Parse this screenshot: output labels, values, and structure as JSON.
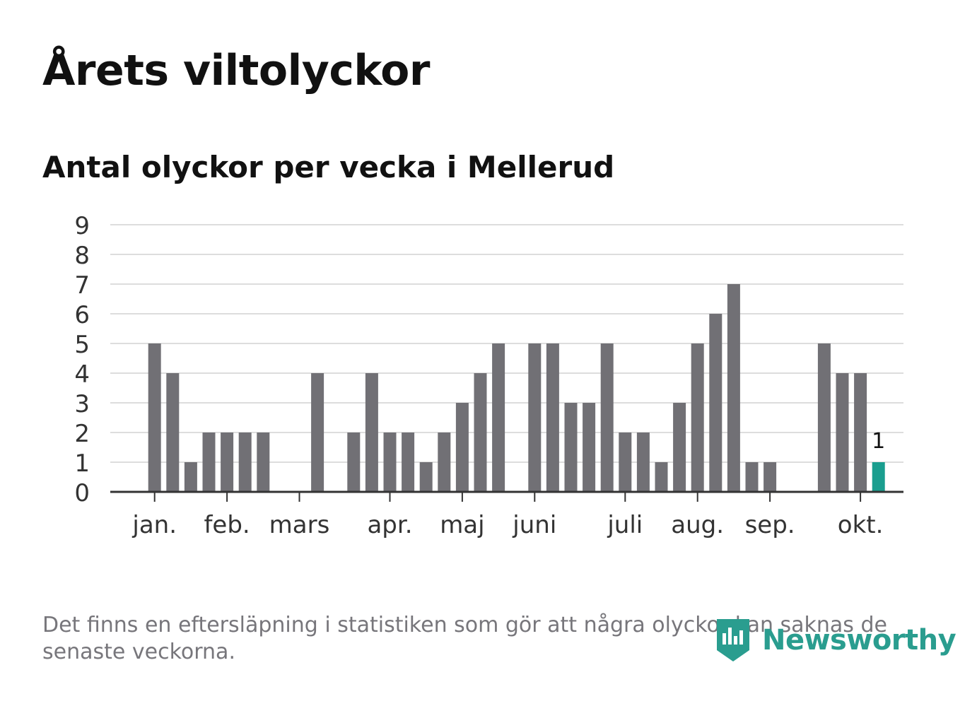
{
  "title": "Årets viltolyckor",
  "footnote": "Det finns en eftersläpning i statistiken som gör att några olyckor kan saknas de senaste veckorna.",
  "brand": {
    "name": "Newsworthy",
    "icon": "newsworthy-logo-icon",
    "color": "#2a9d8f"
  },
  "chart_data": {
    "type": "bar",
    "title": "Antal olyckor per vecka i Mellerud",
    "xlabel": "",
    "ylabel": "",
    "ylim": [
      0,
      9
    ],
    "yticks": [
      "0",
      "1",
      "2",
      "3",
      "4",
      "5",
      "6",
      "7",
      "8",
      "9"
    ],
    "grid": true,
    "values": [
      0,
      0,
      5,
      4,
      1,
      2,
      2,
      2,
      2,
      0,
      0,
      4,
      0,
      2,
      4,
      2,
      2,
      1,
      2,
      3,
      4,
      5,
      0,
      5,
      5,
      3,
      3,
      5,
      2,
      2,
      1,
      3,
      5,
      6,
      7,
      1,
      1,
      0,
      0,
      5,
      4,
      4,
      1
    ],
    "x_month_labels": [
      {
        "label": "jan.",
        "week": 2
      },
      {
        "label": "feb.",
        "week": 6
      },
      {
        "label": "mars",
        "week": 10
      },
      {
        "label": "apr.",
        "week": 15
      },
      {
        "label": "maj",
        "week": 19
      },
      {
        "label": "juni",
        "week": 23
      },
      {
        "label": "juli",
        "week": 28
      },
      {
        "label": "aug.",
        "week": 32
      },
      {
        "label": "sep.",
        "week": 36
      },
      {
        "label": "okt.",
        "week": 41
      }
    ],
    "highlight_last": true,
    "last_value_label": "1",
    "colors": {
      "bar": "#717075",
      "highlight": "#1a9e8f",
      "grid": "#dddddd",
      "axis": "#333333",
      "text": "#333333"
    }
  }
}
